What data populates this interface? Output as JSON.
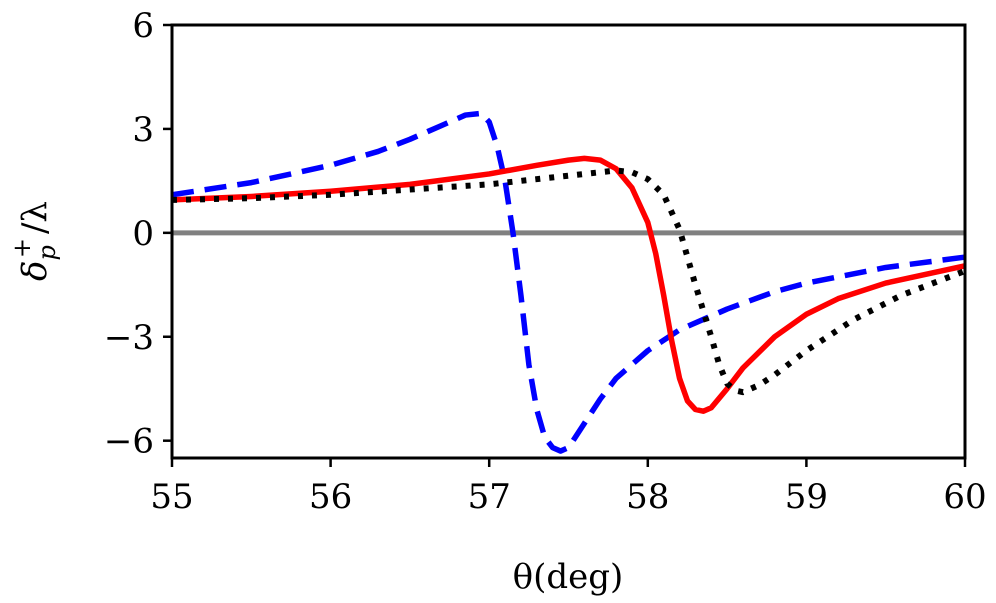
{
  "chart_data": {
    "type": "line",
    "title": "",
    "xlabel": "θ(deg)",
    "ylabel": "δp+ / λ",
    "ylabel_parts": {
      "base": "δ",
      "sub": "p",
      "sup": "+",
      "tail": "/λ"
    },
    "xlim": [
      55,
      60
    ],
    "ylim": [
      -6.5,
      6
    ],
    "xticks": [
      55,
      56,
      57,
      58,
      59,
      60
    ],
    "xtick_labels": [
      "55",
      "56",
      "57",
      "58",
      "59",
      "60"
    ],
    "yticks": [
      -6,
      -3,
      0,
      3,
      6
    ],
    "ytick_labels": [
      "−6",
      "−3",
      "0",
      "3",
      "6"
    ],
    "grid": false,
    "reference_line": {
      "y": 0,
      "color": "#808080"
    },
    "series": [
      {
        "name": "dashed-blue",
        "color": "#0000ff",
        "style": "dashed",
        "x": [
          55.0,
          55.5,
          56.0,
          56.3,
          56.5,
          56.7,
          56.85,
          56.95,
          57.0,
          57.05,
          57.1,
          57.15,
          57.2,
          57.25,
          57.3,
          57.35,
          57.4,
          57.45,
          57.5,
          57.6,
          57.7,
          57.8,
          58.0,
          58.2,
          58.5,
          58.8,
          59.0,
          59.5,
          60.0
        ],
        "y": [
          1.1,
          1.45,
          1.95,
          2.35,
          2.7,
          3.1,
          3.4,
          3.45,
          3.2,
          2.5,
          1.5,
          0.0,
          -1.8,
          -3.8,
          -5.1,
          -5.9,
          -6.2,
          -6.3,
          -6.2,
          -5.5,
          -4.8,
          -4.2,
          -3.4,
          -2.8,
          -2.2,
          -1.7,
          -1.45,
          -1.0,
          -0.7
        ]
      },
      {
        "name": "solid-red",
        "color": "#ff0000",
        "style": "solid",
        "x": [
          55.0,
          55.5,
          56.0,
          56.5,
          57.0,
          57.3,
          57.5,
          57.6,
          57.7,
          57.8,
          57.9,
          58.0,
          58.05,
          58.1,
          58.15,
          58.2,
          58.25,
          58.3,
          58.35,
          58.4,
          58.5,
          58.6,
          58.8,
          59.0,
          59.2,
          59.5,
          60.0
        ],
        "y": [
          0.95,
          1.05,
          1.2,
          1.4,
          1.7,
          1.95,
          2.1,
          2.15,
          2.1,
          1.85,
          1.3,
          0.3,
          -0.6,
          -1.8,
          -3.1,
          -4.2,
          -4.85,
          -5.1,
          -5.15,
          -5.05,
          -4.5,
          -3.9,
          -3.0,
          -2.35,
          -1.9,
          -1.45,
          -0.95
        ]
      },
      {
        "name": "dotted-black",
        "color": "#000000",
        "style": "dotted",
        "x": [
          55.0,
          55.5,
          56.0,
          56.5,
          57.0,
          57.5,
          57.8,
          57.9,
          58.0,
          58.1,
          58.2,
          58.3,
          58.4,
          58.45,
          58.5,
          58.55,
          58.6,
          58.65,
          58.7,
          58.8,
          59.0,
          59.3,
          59.6,
          60.0
        ],
        "y": [
          0.95,
          1.0,
          1.1,
          1.25,
          1.4,
          1.65,
          1.8,
          1.75,
          1.55,
          1.1,
          0.1,
          -1.5,
          -3.0,
          -3.8,
          -4.35,
          -4.55,
          -4.6,
          -4.5,
          -4.4,
          -4.1,
          -3.4,
          -2.5,
          -1.8,
          -1.1
        ]
      }
    ]
  }
}
